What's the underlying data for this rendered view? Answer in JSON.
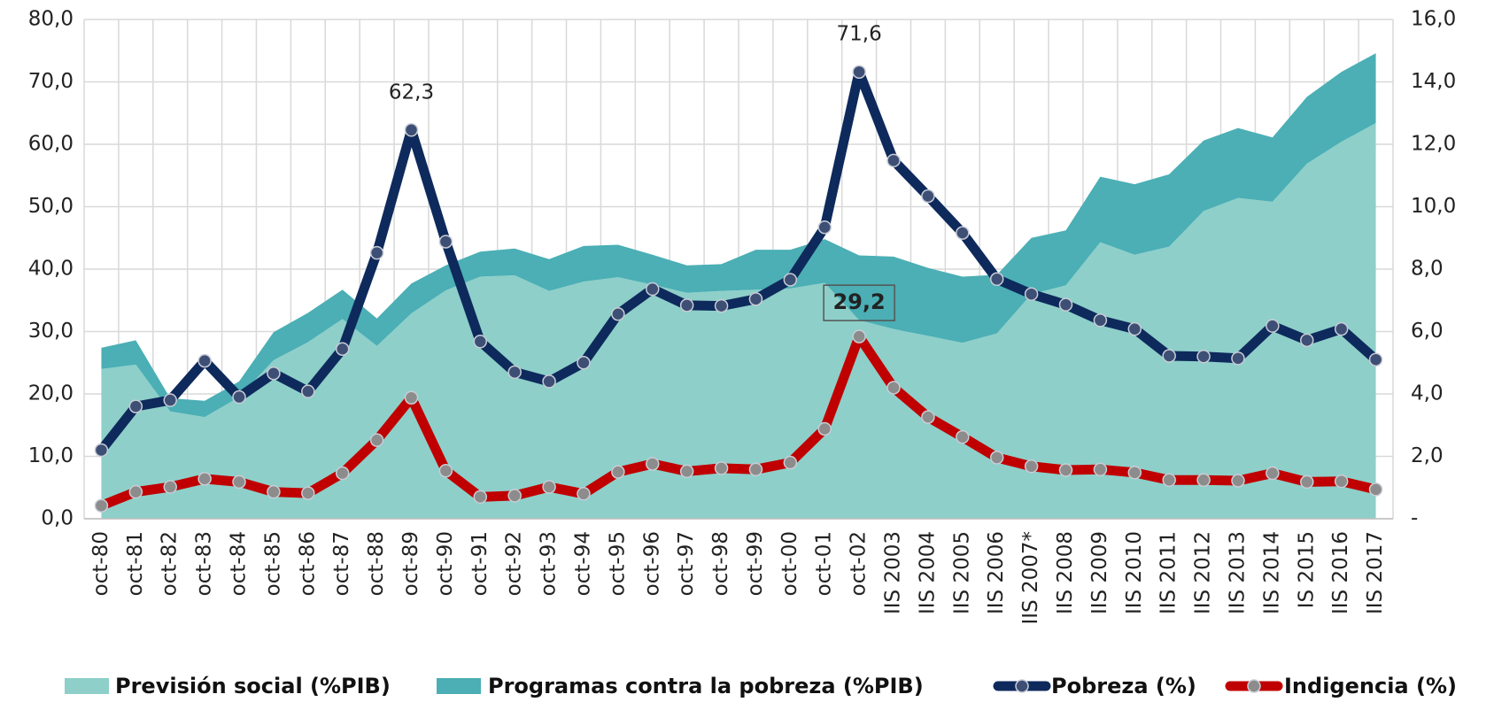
{
  "chart_data": {
    "type": "combo",
    "categories": [
      "oct-80",
      "oct-81",
      "oct-82",
      "oct-83",
      "oct-84",
      "oct-85",
      "oct-86",
      "oct-87",
      "oct-88",
      "oct-89",
      "oct-90",
      "oct-91",
      "oct-92",
      "oct-93",
      "oct-94",
      "oct-95",
      "oct-96",
      "oct-97",
      "oct-98",
      "oct-99",
      "oct-00",
      "oct-01",
      "oct-02",
      "IIS 2003",
      "IIS 2004",
      "IIS 2005",
      "IIS 2006",
      "IIS 2007*",
      "IIS 2008",
      "IIS 2009",
      "IIS 2010",
      "IIS 2011",
      "IIS 2012",
      "IIS 2013",
      "IIS 2014",
      "IS 2015",
      "IIS 2016",
      "IIS 2017"
    ],
    "ylim": [
      0,
      80
    ],
    "yticks": [
      {
        "value": 0,
        "label": "0,0"
      },
      {
        "value": 10,
        "label": "10,0"
      },
      {
        "value": 20,
        "label": "20,0"
      },
      {
        "value": 30,
        "label": "30,0"
      },
      {
        "value": 40,
        "label": "40,0"
      },
      {
        "value": 50,
        "label": "50,0"
      },
      {
        "value": 60,
        "label": "60,0"
      },
      {
        "value": 70,
        "label": "70,0"
      },
      {
        "value": 80,
        "label": "80,0"
      }
    ],
    "y2lim": [
      0,
      16
    ],
    "y2ticks": [
      {
        "value": 0,
        "label": "-"
      },
      {
        "value": 2,
        "label": "2,0"
      },
      {
        "value": 4,
        "label": "4,0"
      },
      {
        "value": 6,
        "label": "6,0"
      },
      {
        "value": 8,
        "label": "8,0"
      },
      {
        "value": 10,
        "label": "10,0"
      },
      {
        "value": 12,
        "label": "12,0"
      },
      {
        "value": 14,
        "label": "14,0"
      },
      {
        "value": 16,
        "label": "16,0"
      }
    ],
    "grid": true,
    "legend": "bottom",
    "series": [
      {
        "name": "Previsión social (%PIB)",
        "type": "area",
        "stacked": true,
        "axis": "y2",
        "color": "#8ecfc9",
        "values": [
          4.8,
          4.94,
          3.44,
          3.26,
          3.9,
          5.08,
          5.66,
          6.4,
          5.54,
          6.58,
          7.32,
          7.76,
          7.8,
          7.3,
          7.6,
          7.74,
          7.5,
          7.24,
          7.3,
          7.34,
          7.38,
          7.56,
          6.36,
          6.08,
          5.86,
          5.64,
          5.94,
          7.2,
          7.48,
          8.86,
          8.46,
          8.72,
          9.86,
          10.28,
          10.16,
          11.38,
          12.08,
          12.68
        ]
      },
      {
        "name": "Programas contra la pobreza (%PIB)",
        "type": "area",
        "stacked": true,
        "axis": "y2",
        "color": "#4bafb5",
        "values": [
          0.68,
          0.78,
          0.42,
          0.52,
          0.5,
          0.9,
          0.94,
          0.94,
          0.88,
          0.96,
          0.8,
          0.8,
          0.86,
          1.02,
          1.14,
          1.04,
          0.96,
          0.88,
          0.86,
          1.28,
          1.24,
          1.4,
          2.08,
          2.32,
          2.18,
          2.12,
          1.88,
          1.8,
          1.76,
          2.1,
          2.26,
          2.32,
          2.26,
          2.24,
          2.06,
          2.14,
          2.24,
          2.24
        ]
      },
      {
        "name": "Pobreza (%)",
        "type": "line",
        "color": "#0e2a5c",
        "marker_color": "#3e4f75",
        "values": [
          11.0,
          18.0,
          19.0,
          25.3,
          19.5,
          23.3,
          20.4,
          27.2,
          42.6,
          62.3,
          44.4,
          28.4,
          23.5,
          22.0,
          25.0,
          32.8,
          36.8,
          34.2,
          34.1,
          35.2,
          38.3,
          46.7,
          71.6,
          57.4,
          51.7,
          45.8,
          38.4,
          36.0,
          34.3,
          31.8,
          30.4,
          26.1,
          26.0,
          25.7,
          30.9,
          28.6,
          30.4,
          25.5
        ],
        "value_labels": [
          null,
          null,
          null,
          null,
          null,
          null,
          null,
          null,
          null,
          "62,3",
          null,
          null,
          null,
          null,
          null,
          null,
          null,
          null,
          null,
          null,
          null,
          null,
          "71,6",
          null,
          null,
          null,
          null,
          null,
          null,
          null,
          null,
          null,
          null,
          null,
          null,
          null,
          null,
          null
        ]
      },
      {
        "name": "Indigencia (%)",
        "type": "line",
        "color": "#c00000",
        "marker_color": "#8c8c8c",
        "value_label_style": "boxed-bold",
        "values": [
          2.1,
          4.3,
          5.1,
          6.4,
          5.9,
          4.3,
          4.1,
          7.3,
          12.6,
          19.4,
          7.7,
          3.5,
          3.7,
          5.1,
          4.0,
          7.5,
          8.8,
          7.6,
          8.1,
          7.9,
          9.0,
          14.4,
          29.2,
          21.0,
          16.3,
          13.1,
          9.8,
          8.4,
          7.8,
          7.9,
          7.4,
          6.2,
          6.2,
          6.1,
          7.3,
          5.9,
          6.0,
          4.7
        ],
        "value_labels": [
          null,
          null,
          null,
          null,
          null,
          null,
          null,
          null,
          null,
          null,
          null,
          null,
          null,
          null,
          null,
          null,
          null,
          null,
          null,
          null,
          null,
          null,
          "29,2",
          null,
          null,
          null,
          null,
          null,
          null,
          null,
          null,
          null,
          null,
          null,
          null,
          null,
          null,
          null
        ]
      }
    ]
  }
}
